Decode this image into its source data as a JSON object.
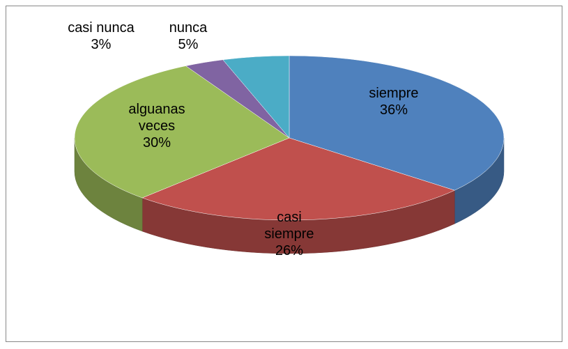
{
  "chart_data": {
    "type": "pie",
    "categories": [
      "siempre",
      "casi siempre",
      "alguanas veces",
      "casi nunca",
      "nunca"
    ],
    "values": [
      36,
      26,
      30,
      3,
      5
    ],
    "value_labels": [
      "36%",
      "26%",
      "30%",
      "3%",
      "5%"
    ],
    "colors": [
      "#4f81bd",
      "#c0504d",
      "#9bbb59",
      "#8064a2",
      "#4bacc6"
    ]
  }
}
